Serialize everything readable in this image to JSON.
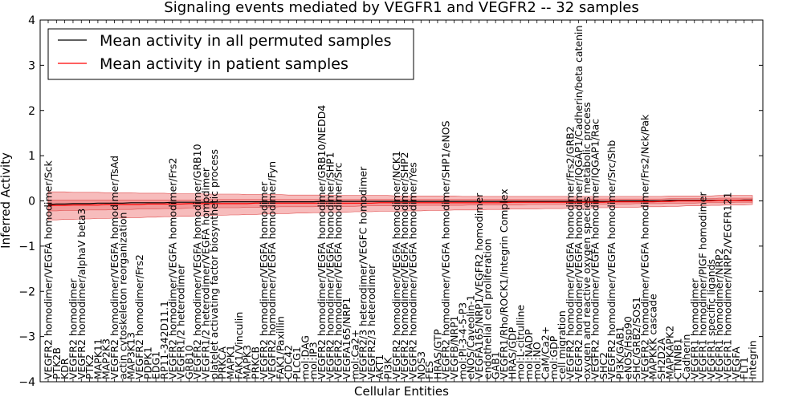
{
  "chart_data": {
    "type": "line",
    "title": "Signaling events mediated by VEGFR1 and VEGFR2 -- 32 samples",
    "xlabel": "Cellular Entities",
    "ylabel": "Inferred Activity",
    "ylim": [
      -4,
      4
    ],
    "yticks": [
      -4,
      -3,
      -2,
      -1,
      0,
      1,
      2,
      3,
      4
    ],
    "legend_position": "top-left",
    "categories": [
      "VEGFR2 homodimer/VEGFA homodimer/Sck",
      "PTK2B",
      "KDR",
      "VEGFR2 homodimer",
      "VEGFR2 homodimer/alphaV beta3",
      "PTK2",
      "MAPK11",
      "MAP2K3",
      "VEGFR2 homodimer/VEGFA homodimer/TsAd",
      "actin cytoskeleton reorganization",
      "MAP3K13",
      "VEGFR2 homodimer/Frs2",
      "PDPK1",
      "EDG1",
      "RP11-342D11.1",
      "VEGFR2 homodimer/VEGFA homodimer/Frs2",
      "VEGFR1/2 heterodimer",
      "GRB10",
      "VEGFR2 homodimer/VEGFA homodimer/GRB10",
      "VEGFR1/2 heterodimer/VEGFA homodimer",
      "platelet activating factor biosynthetic process",
      "PRKCA",
      "MAPK1",
      "FAK1/Vinculin",
      "MAPK3",
      "PRKCB",
      "VEGFR2 homodimer/VEGFA homodimer",
      "VEGFR2 homodimer/VEGFA homodimer/Fyn",
      "FAK1/Paxillin",
      "CDC42",
      "PLCG1",
      "mol:DAG",
      "mol:IP3",
      "VEGFR2 homodimer/VEGFA homodimer/GRB10/NEDD4",
      "VEGFR2 homodimer/VEGFA homodimer/SHP1",
      "VEGFR2 homodimer/VEGFA homodimer/Src",
      "VEGFA165/NRP1",
      "mol:Ca2+",
      "VEGFR2/3 heterodimer/VEGFC homodimer",
      "VEGFR2/3 heterodimer",
      "AKT1",
      "PI3K",
      "VEGFR2 homodimer/VEGFA homodimer/NCK1",
      "VEGFR2 homodimer/VEGFA homodimer/SHP2",
      "VEGFR2 homodimer/VEGFA homodimer/Yes",
      "NOS3",
      "FES",
      "HRAS/GTP",
      "VEGFR2 homodimer/VEGFA homodimer/SHP1/eNOS",
      "VEGFB/NRP1",
      "mol:PI-3-4-5-P3",
      "eNOS/Caveolin-1",
      "VEGFA165/NRP1/VEGFR2 homodimer",
      "endothelial cell proliferation",
      "GAB1",
      "VEGFR1/Rho/ROCK1/Integrin Complex",
      "HRAS/GDP",
      "mol:L-citrulline",
      "mol:NADP",
      "mol:NO",
      "CaM/Ca2+",
      "mol:GDP",
      "cell migration",
      "VEGFR2 homodimer/VEGFA homodimer/Frs2/GRB2",
      "VEGFR2 homodimer/VEGFA homodimer/IQGAP1/Cadherin/beta catenin",
      "oxygen and reactive oxygen species metabolic process",
      "VEGFR2 homodimer/VEGFA homodimer/IQGAP1/Rac",
      "SHC2",
      "VEGFR2 homodimer/VEGFA homodimer/Src/Shb",
      "PI3K/GAB1",
      "eNOS/Hsp90",
      "SHC/GRB2/SOS1",
      "VEGFR2 homodimer/VEGFA homodimer/Frs2/Nck/Pak",
      "MAPKKK cascade",
      "SH2D2A",
      "MAPKAPK2",
      "CTNNB1",
      "Cadherin",
      "VEGFR1 homodimer",
      "VEGFR1 homodimer/PlGF homodimer",
      "VEGFR1 specific ligands",
      "VEGFR1 homodimer/NRP2",
      "VEGFR1 homodimer/NRP2/VEGFR121",
      "VEGFA",
      "FLT1",
      "Integrin"
    ],
    "series": [
      {
        "name": "Mean activity in all permuted samples",
        "color": "#000000",
        "values": [
          -0.08,
          -0.07,
          -0.07,
          -0.06,
          -0.06,
          -0.06,
          -0.05,
          -0.05,
          -0.05,
          -0.05,
          -0.04,
          -0.04,
          -0.04,
          -0.04,
          -0.04,
          -0.03,
          -0.03,
          -0.03,
          -0.03,
          -0.03,
          -0.03,
          -0.02,
          -0.02,
          -0.02,
          -0.02,
          -0.02,
          -0.02,
          -0.02,
          -0.02,
          -0.02,
          -0.02,
          -0.02,
          -0.02,
          -0.01,
          -0.01,
          -0.01,
          -0.01,
          -0.01,
          -0.01,
          -0.01,
          -0.01,
          -0.01,
          -0.01,
          -0.01,
          -0.01,
          -0.01,
          -0.01,
          -0.01,
          -0.01,
          -0.01,
          -0.01,
          -0.01,
          -0.01,
          -0.01,
          -0.01,
          -0.01,
          -0.01,
          -0.01,
          -0.01,
          -0.01,
          -0.01,
          -0.01,
          -0.01,
          -0.01,
          -0.01,
          -0.01,
          -0.01,
          -0.01,
          -0.01,
          0.0,
          0.0,
          0.0,
          0.0,
          0.0,
          0.0,
          0.01,
          0.01,
          0.01,
          0.01,
          0.01,
          0.01,
          0.01,
          0.01,
          0.01,
          0.02,
          0.02
        ]
      },
      {
        "name": "Mean activity in patient samples",
        "color": "#ff0000",
        "values": [
          -0.1,
          -0.1,
          -0.1,
          -0.09,
          -0.09,
          -0.09,
          -0.09,
          -0.08,
          -0.08,
          -0.08,
          -0.08,
          -0.08,
          -0.07,
          -0.07,
          -0.07,
          -0.07,
          -0.07,
          -0.06,
          -0.06,
          -0.06,
          -0.06,
          -0.06,
          -0.06,
          -0.06,
          -0.06,
          -0.05,
          -0.05,
          -0.05,
          -0.05,
          -0.05,
          -0.05,
          -0.05,
          -0.05,
          -0.05,
          -0.05,
          -0.05,
          -0.05,
          -0.05,
          -0.05,
          -0.05,
          -0.04,
          -0.04,
          -0.04,
          -0.04,
          -0.04,
          -0.04,
          -0.04,
          -0.04,
          -0.04,
          -0.04,
          -0.04,
          -0.04,
          -0.04,
          -0.04,
          -0.04,
          -0.04,
          -0.03,
          -0.03,
          -0.03,
          -0.03,
          -0.03,
          -0.03,
          -0.03,
          -0.03,
          -0.03,
          -0.03,
          -0.03,
          -0.03,
          -0.02,
          -0.02,
          -0.02,
          -0.02,
          -0.02,
          -0.02,
          -0.01,
          -0.01,
          0.0,
          0.0,
          0.0,
          0.0,
          0.0,
          0.01,
          0.01,
          0.01,
          0.01,
          0.01
        ]
      }
    ],
    "band_outer": {
      "color": "#f4a6a6",
      "lower": [
        -0.42,
        -0.42,
        -0.41,
        -0.41,
        -0.4,
        -0.4,
        -0.39,
        -0.39,
        -0.38,
        -0.38,
        -0.37,
        -0.37,
        -0.36,
        -0.36,
        -0.35,
        -0.35,
        -0.34,
        -0.34,
        -0.33,
        -0.33,
        -0.32,
        -0.32,
        -0.31,
        -0.31,
        -0.3,
        -0.3,
        -0.29,
        -0.29,
        -0.28,
        -0.28,
        -0.27,
        -0.27,
        -0.26,
        -0.26,
        -0.25,
        -0.25,
        -0.25,
        -0.24,
        -0.24,
        -0.24,
        -0.23,
        -0.23,
        -0.23,
        -0.22,
        -0.22,
        -0.22,
        -0.21,
        -0.21,
        -0.21,
        -0.2,
        -0.2,
        -0.2,
        -0.2,
        -0.19,
        -0.19,
        -0.19,
        -0.18,
        -0.18,
        -0.18,
        -0.18,
        -0.17,
        -0.17,
        -0.17,
        -0.16,
        -0.16,
        -0.16,
        -0.15,
        -0.15,
        -0.15,
        -0.14,
        -0.14,
        -0.14,
        -0.13,
        -0.13,
        -0.13,
        -0.12,
        -0.12,
        -0.11,
        -0.11,
        -0.11,
        -0.1,
        -0.1,
        -0.09,
        -0.09,
        -0.09,
        -0.08
      ],
      "upper": [
        0.2,
        0.2,
        0.2,
        0.19,
        0.19,
        0.19,
        0.19,
        0.18,
        0.18,
        0.18,
        0.18,
        0.17,
        0.17,
        0.17,
        0.17,
        0.16,
        0.16,
        0.16,
        0.16,
        0.15,
        0.15,
        0.15,
        0.15,
        0.15,
        0.14,
        0.14,
        0.14,
        0.14,
        0.14,
        0.13,
        0.13,
        0.13,
        0.13,
        0.13,
        0.13,
        0.12,
        0.12,
        0.12,
        0.12,
        0.12,
        0.12,
        0.12,
        0.11,
        0.11,
        0.11,
        0.11,
        0.11,
        0.11,
        0.11,
        0.11,
        0.1,
        0.1,
        0.1,
        0.1,
        0.1,
        0.1,
        0.1,
        0.1,
        0.1,
        0.1,
        0.1,
        0.1,
        0.1,
        0.1,
        0.1,
        0.1,
        0.1,
        0.1,
        0.1,
        0.1,
        0.1,
        0.1,
        0.1,
        0.1,
        0.1,
        0.11,
        0.11,
        0.11,
        0.11,
        0.11,
        0.11,
        0.12,
        0.12,
        0.12,
        0.12,
        0.12
      ]
    },
    "band_inner": {
      "color": "#ee8080",
      "lower": [
        -0.22,
        -0.22,
        -0.21,
        -0.21,
        -0.21,
        -0.2,
        -0.2,
        -0.2,
        -0.19,
        -0.19,
        -0.19,
        -0.18,
        -0.18,
        -0.18,
        -0.17,
        -0.17,
        -0.17,
        -0.16,
        -0.16,
        -0.16,
        -0.15,
        -0.15,
        -0.15,
        -0.15,
        -0.14,
        -0.14,
        -0.14,
        -0.14,
        -0.13,
        -0.13,
        -0.13,
        -0.13,
        -0.13,
        -0.12,
        -0.12,
        -0.12,
        -0.12,
        -0.12,
        -0.11,
        -0.11,
        -0.11,
        -0.11,
        -0.11,
        -0.11,
        -0.1,
        -0.1,
        -0.1,
        -0.1,
        -0.1,
        -0.1,
        -0.1,
        -0.09,
        -0.09,
        -0.09,
        -0.09,
        -0.09,
        -0.09,
        -0.09,
        -0.08,
        -0.08,
        -0.08,
        -0.08,
        -0.08,
        -0.08,
        -0.08,
        -0.07,
        -0.07,
        -0.07,
        -0.07,
        -0.07,
        -0.07,
        -0.06,
        -0.06,
        -0.06,
        -0.06,
        -0.05,
        -0.05,
        -0.05,
        -0.05,
        -0.04,
        -0.04,
        -0.04,
        -0.04,
        -0.03,
        -0.03,
        -0.03
      ],
      "upper": [
        0.02,
        0.02,
        0.02,
        0.02,
        0.02,
        0.02,
        0.02,
        0.02,
        0.02,
        0.02,
        0.02,
        0.02,
        0.02,
        0.02,
        0.02,
        0.02,
        0.02,
        0.02,
        0.02,
        0.03,
        0.03,
        0.03,
        0.03,
        0.03,
        0.03,
        0.03,
        0.03,
        0.03,
        0.03,
        0.03,
        0.03,
        0.03,
        0.03,
        0.03,
        0.03,
        0.03,
        0.03,
        0.03,
        0.03,
        0.03,
        0.03,
        0.03,
        0.03,
        0.03,
        0.03,
        0.03,
        0.03,
        0.03,
        0.03,
        0.03,
        0.03,
        0.03,
        0.03,
        0.03,
        0.03,
        0.03,
        0.03,
        0.03,
        0.03,
        0.03,
        0.03,
        0.03,
        0.03,
        0.03,
        0.04,
        0.04,
        0.04,
        0.04,
        0.04,
        0.04,
        0.04,
        0.04,
        0.04,
        0.04,
        0.04,
        0.05,
        0.05,
        0.05,
        0.05,
        0.05,
        0.05,
        0.06,
        0.06,
        0.06,
        0.06,
        0.06
      ]
    }
  }
}
